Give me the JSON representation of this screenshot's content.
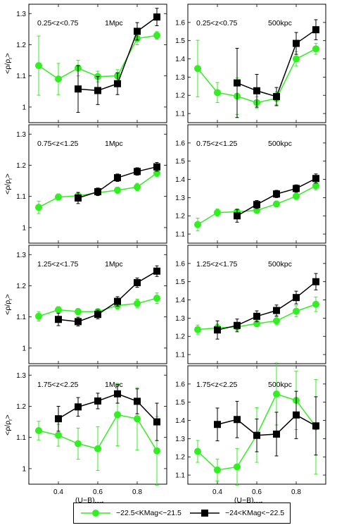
{
  "chart_data": [
    {
      "type": "line",
      "annotation": "0.25<z<0.75",
      "scale_label": "1Mpc",
      "ylim": [
        0.95,
        1.33
      ],
      "yticks": [
        1,
        1.1,
        1.2,
        1.3
      ],
      "series": [
        {
          "name": "-22.5<KMag<-21.5",
          "x": [
            0.3,
            0.4,
            0.5,
            0.6,
            0.7,
            0.8,
            0.9
          ],
          "y": [
            1.133,
            1.09,
            1.125,
            1.098,
            1.1,
            1.22,
            1.23
          ],
          "err": [
            0.095,
            0.05,
            0.025,
            0.017,
            0.02,
            0.02,
            0.012
          ]
        },
        {
          "name": "-24<KMag<-22.5",
          "x": [
            0.5,
            0.6,
            0.7,
            0.8,
            0.9
          ],
          "y": [
            1.058,
            1.053,
            1.075,
            1.243,
            1.289
          ],
          "err": [
            0.075,
            0.045,
            0.035,
            0.028,
            0.028
          ]
        }
      ]
    },
    {
      "type": "line",
      "annotation": "0.25<z<0.75",
      "scale_label": "500kpc",
      "ylim": [
        1.05,
        1.7
      ],
      "yticks": [
        1.1,
        1.2,
        1.3,
        1.4,
        1.5,
        1.6
      ],
      "series": [
        {
          "name": "-22.5<KMag<-21.5",
          "x": [
            0.3,
            0.4,
            0.5,
            0.6,
            0.7,
            0.8,
            0.9
          ],
          "y": [
            1.347,
            1.215,
            1.195,
            1.16,
            1.183,
            1.4,
            1.455
          ],
          "err": [
            0.155,
            0.055,
            0.1,
            0.032,
            0.035,
            0.04,
            0.03
          ]
        },
        {
          "name": "-24<KMag<-22.5",
          "x": [
            0.5,
            0.6,
            0.7,
            0.8,
            0.9
          ],
          "y": [
            1.268,
            1.225,
            1.193,
            1.485,
            1.56
          ],
          "err": [
            0.19,
            0.09,
            0.05,
            0.06,
            0.055
          ]
        }
      ]
    },
    {
      "type": "line",
      "annotation": "0.75<z<1.25",
      "scale_label": "1Mpc",
      "ylim": [
        0.95,
        1.33
      ],
      "yticks": [
        1,
        1.1,
        1.2,
        1.3
      ],
      "series": [
        {
          "name": "-22.5<KMag<-21.5",
          "x": [
            0.3,
            0.4,
            0.5,
            0.6,
            0.7,
            0.8,
            0.9
          ],
          "y": [
            1.065,
            1.098,
            1.102,
            1.112,
            1.12,
            1.13,
            1.175
          ],
          "err": [
            0.02,
            0.01,
            0.009,
            0.009,
            0.01,
            0.012,
            0.012
          ]
        },
        {
          "name": "-24<KMag<-22.5",
          "x": [
            0.5,
            0.6,
            0.7,
            0.8,
            0.9
          ],
          "y": [
            1.095,
            1.115,
            1.16,
            1.18,
            1.195
          ],
          "err": [
            0.018,
            0.012,
            0.012,
            0.012,
            0.014
          ]
        }
      ]
    },
    {
      "type": "line",
      "annotation": "0.75<z<1.25",
      "scale_label": "500kpc",
      "ylim": [
        1.05,
        1.7
      ],
      "yticks": [
        1.1,
        1.2,
        1.3,
        1.4,
        1.5,
        1.6
      ],
      "series": [
        {
          "name": "-22.5<KMag<-21.5",
          "x": [
            0.3,
            0.4,
            0.5,
            0.6,
            0.7,
            0.8,
            0.9
          ],
          "y": [
            1.152,
            1.218,
            1.222,
            1.23,
            1.265,
            1.308,
            1.365
          ],
          "err": [
            0.035,
            0.02,
            0.015,
            0.012,
            0.016,
            0.018,
            0.022
          ]
        },
        {
          "name": "-24<KMag<-22.5",
          "x": [
            0.5,
            0.6,
            0.7,
            0.8,
            0.9
          ],
          "y": [
            1.2,
            1.262,
            1.32,
            1.35,
            1.405
          ],
          "err": [
            0.035,
            0.022,
            0.02,
            0.02,
            0.025
          ]
        }
      ]
    },
    {
      "type": "line",
      "annotation": "1.25<z<1.75",
      "scale_label": "1Mpc",
      "ylim": [
        0.95,
        1.33
      ],
      "yticks": [
        1,
        1.1,
        1.2,
        1.3
      ],
      "series": [
        {
          "name": "-22.5<KMag<-21.5",
          "x": [
            0.3,
            0.4,
            0.5,
            0.6,
            0.7,
            0.8,
            0.9
          ],
          "y": [
            1.102,
            1.123,
            1.117,
            1.117,
            1.137,
            1.143,
            1.16
          ],
          "err": [
            0.015,
            0.01,
            0.01,
            0.01,
            0.012,
            0.014,
            0.017
          ]
        },
        {
          "name": "-24<KMag<-22.5",
          "x": [
            0.4,
            0.5,
            0.6,
            0.7,
            0.8,
            0.9
          ],
          "y": [
            1.092,
            1.085,
            1.108,
            1.15,
            1.21,
            1.247
          ],
          "err": [
            0.02,
            0.014,
            0.014,
            0.015,
            0.015,
            0.017
          ]
        }
      ]
    },
    {
      "type": "line",
      "annotation": "1.25<z<1.75",
      "scale_label": "500kpc",
      "ylim": [
        1.05,
        1.7
      ],
      "yticks": [
        1.1,
        1.2,
        1.3,
        1.4,
        1.5,
        1.6
      ],
      "series": [
        {
          "name": "-22.5<KMag<-21.5",
          "x": [
            0.3,
            0.4,
            0.5,
            0.6,
            0.7,
            0.8,
            0.9
          ],
          "y": [
            1.237,
            1.247,
            1.252,
            1.27,
            1.285,
            1.338,
            1.376
          ],
          "err": [
            0.025,
            0.02,
            0.018,
            0.018,
            0.022,
            0.03,
            0.04
          ]
        },
        {
          "name": "-24<KMag<-22.5",
          "x": [
            0.4,
            0.5,
            0.6,
            0.7,
            0.8,
            0.9
          ],
          "y": [
            1.235,
            1.26,
            1.31,
            1.342,
            1.413,
            1.5
          ],
          "err": [
            0.05,
            0.035,
            0.03,
            0.03,
            0.035,
            0.045
          ]
        }
      ]
    },
    {
      "type": "line",
      "annotation": "1.75<z<2.25",
      "scale_label": "1Mpc",
      "ylim": [
        0.95,
        1.33
      ],
      "yticks": [
        1,
        1.1,
        1.2,
        1.3
      ],
      "series": [
        {
          "name": "-22.5<KMag<-21.5",
          "x": [
            0.3,
            0.4,
            0.5,
            0.6,
            0.7,
            0.8,
            0.9
          ],
          "y": [
            1.122,
            1.107,
            1.08,
            1.064,
            1.173,
            1.16,
            1.057
          ],
          "err": [
            0.03,
            0.035,
            0.05,
            0.07,
            0.1,
            0.1,
            0.11
          ]
        },
        {
          "name": "-24<KMag<-22.5",
          "x": [
            0.4,
            0.5,
            0.6,
            0.7,
            0.8,
            0.9
          ],
          "y": [
            1.16,
            1.198,
            1.217,
            1.24,
            1.216,
            1.15
          ],
          "err": [
            0.04,
            0.03,
            0.025,
            0.03,
            0.04,
            0.06
          ]
        }
      ]
    },
    {
      "type": "line",
      "annotation": "1.75<z<2.25",
      "scale_label": "500kpc",
      "ylim": [
        1.05,
        1.7
      ],
      "yticks": [
        1.1,
        1.2,
        1.3,
        1.4,
        1.5,
        1.6
      ],
      "series": [
        {
          "name": "-22.5<KMag<-21.5",
          "x": [
            0.3,
            0.4,
            0.5,
            0.6,
            0.7,
            0.8,
            0.9
          ],
          "y": [
            1.23,
            1.128,
            1.145,
            1.32,
            1.545,
            1.51,
            1.365
          ],
          "err": [
            0.06,
            0.06,
            0.1,
            0.15,
            0.17,
            0.16,
            0.26
          ]
        },
        {
          "name": "-24<KMag<-22.5",
          "x": [
            0.4,
            0.5,
            0.6,
            0.7,
            0.8,
            0.9
          ],
          "y": [
            1.378,
            1.405,
            1.318,
            1.325,
            1.43,
            1.37
          ],
          "err": [
            0.09,
            0.1,
            0.09,
            0.12,
            0.13,
            0.16
          ]
        }
      ]
    }
  ],
  "axes": {
    "xlim": [
      0.25,
      0.95
    ],
    "xticks": [
      "0.4",
      "0.6",
      "0.8"
    ],
    "ylabel": "<ρ/ρ",
    "ylabel_sub": "r",
    "ylabel_tail": ">",
    "xlabel": "(U−B)",
    "xlabel_sub": "rest",
    "grid": false
  },
  "colors": {
    "faint": "#33ee22",
    "bright": "#000000"
  },
  "legend": {
    "placement": "bottom",
    "items": [
      {
        "label": "−22.5<KMag<−21.5",
        "color": "#33ee22",
        "marker": "circle"
      },
      {
        "label": "−24<KMag<−22.5",
        "color": "#000000",
        "marker": "square"
      }
    ]
  }
}
